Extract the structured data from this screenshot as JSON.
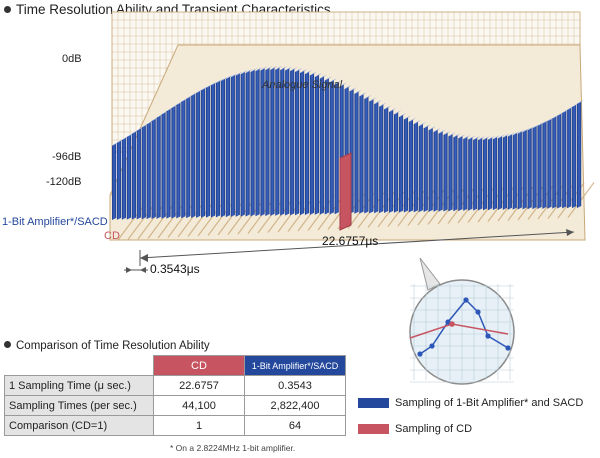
{
  "title": "Time Resolution Ability and Transient Characteristics",
  "y_axis_labels": [
    "0dB",
    "-96dB",
    "-120dB"
  ],
  "curve_label": "Analogue Signal",
  "tracks": {
    "sacd": "1-Bit Amplifier*/SACD",
    "cd": "CD"
  },
  "intervals": {
    "cd": "22.6757μs",
    "sacd": "0.3543μs"
  },
  "comparison": {
    "title": "Comparison of Time Resolution Ability",
    "columns": [
      "CD",
      "1-Bit Amplifier*/SACD"
    ],
    "rows": [
      {
        "label": "1 Sampling Time (μ sec.)",
        "cd": "22.6757",
        "sacd": "0.3543"
      },
      {
        "label": "Sampling Times (per sec.)",
        "cd": "44,100",
        "sacd": "2,822,400"
      },
      {
        "label": "Comparison (CD=1)",
        "cd": "1",
        "sacd": "64"
      }
    ],
    "footnote": "* On a 2.8224MHz 1-bit amplifier."
  },
  "legend": [
    {
      "label": "Sampling of 1-Bit Amplifier* and SACD",
      "color": "#23489c"
    },
    {
      "label": "Sampling of CD",
      "color": "#c65561"
    }
  ],
  "colors": {
    "sacd": "#23489c",
    "cd": "#c65561",
    "grid": "#c9a878",
    "floor": "#f3ead8"
  }
}
